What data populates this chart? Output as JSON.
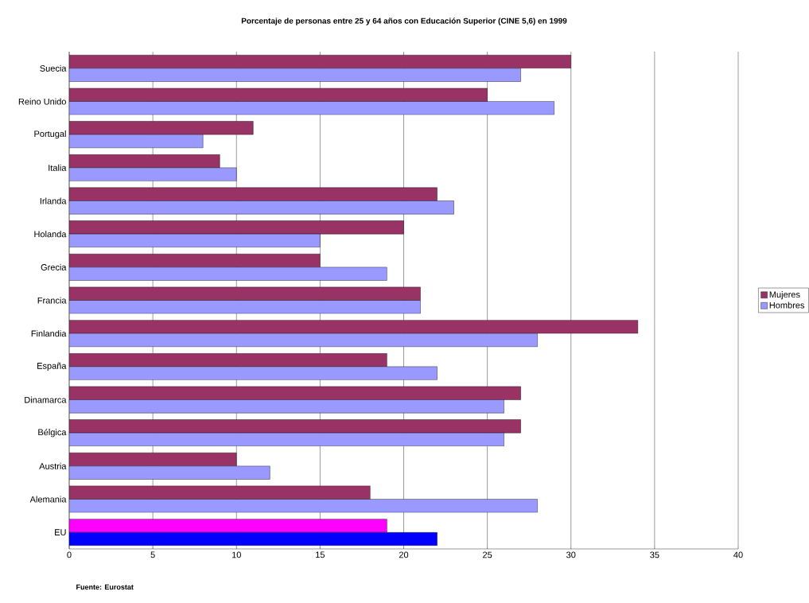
{
  "chart_data": {
    "type": "bar",
    "orientation": "horizontal",
    "title": "Porcentaje de personas entre 25 y 64 años con Educación Superior (CINE 5,6) en 1999",
    "categories": [
      "Suecia",
      "Reino Unido",
      "Portugal",
      "Italia",
      "Irlanda",
      "Holanda",
      "Grecia",
      "Francia",
      "Finlandia",
      "España",
      "Dinamarca",
      "Bélgica",
      "Austria",
      "Alemania",
      "EU"
    ],
    "series": [
      {
        "name": "Mujeres",
        "color": "#993366",
        "colors": [
          "#993366",
          "#993366",
          "#993366",
          "#993366",
          "#993366",
          "#993366",
          "#993366",
          "#993366",
          "#993366",
          "#993366",
          "#993366",
          "#993366",
          "#993366",
          "#993366",
          "#ff00ff"
        ],
        "values": [
          30,
          25,
          11,
          9,
          22,
          20,
          15,
          21,
          34,
          19,
          27,
          27,
          10,
          18,
          19
        ]
      },
      {
        "name": "Hombres",
        "color": "#9999ff",
        "colors": [
          "#9999ff",
          "#9999ff",
          "#9999ff",
          "#9999ff",
          "#9999ff",
          "#9999ff",
          "#9999ff",
          "#9999ff",
          "#9999ff",
          "#9999ff",
          "#9999ff",
          "#9999ff",
          "#9999ff",
          "#9999ff",
          "#0000ff"
        ],
        "values": [
          27,
          29,
          8,
          10,
          23,
          15,
          19,
          21,
          28,
          22,
          26,
          26,
          12,
          28,
          22
        ]
      }
    ],
    "xlim": [
      0,
      40
    ],
    "xticks": [
      0,
      5,
      10,
      15,
      20,
      25,
      30,
      35,
      40
    ],
    "grid": "x",
    "legend": "right",
    "annotations": [
      "Fuente: Eurostat"
    ]
  }
}
